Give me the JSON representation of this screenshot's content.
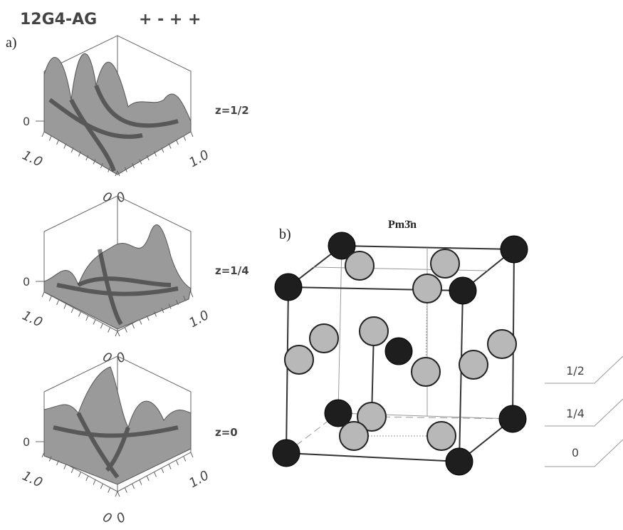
{
  "header": {
    "title": "12G4-AG",
    "signs": "+ - + +"
  },
  "panel_a": {
    "label": "a)",
    "plots": [
      {
        "z_label": "z=1/2",
        "axis_zero": "0",
        "left_max": "1.0",
        "right_max": "1.0",
        "left_min": "0",
        "right_min": "0"
      },
      {
        "z_label": "z=1/4",
        "axis_zero": "0",
        "left_max": "1.0",
        "right_max": "1.0",
        "left_min": "0",
        "right_min": "0"
      },
      {
        "z_label": "z=0",
        "axis_zero": "0",
        "left_max": "1.0",
        "right_max": "1.0",
        "left_min": "0",
        "right_min": "0"
      }
    ]
  },
  "panel_b": {
    "label": "b)",
    "space_group": "Pm3̄n",
    "layers": [
      "1/2",
      "1/4",
      "0"
    ]
  }
}
